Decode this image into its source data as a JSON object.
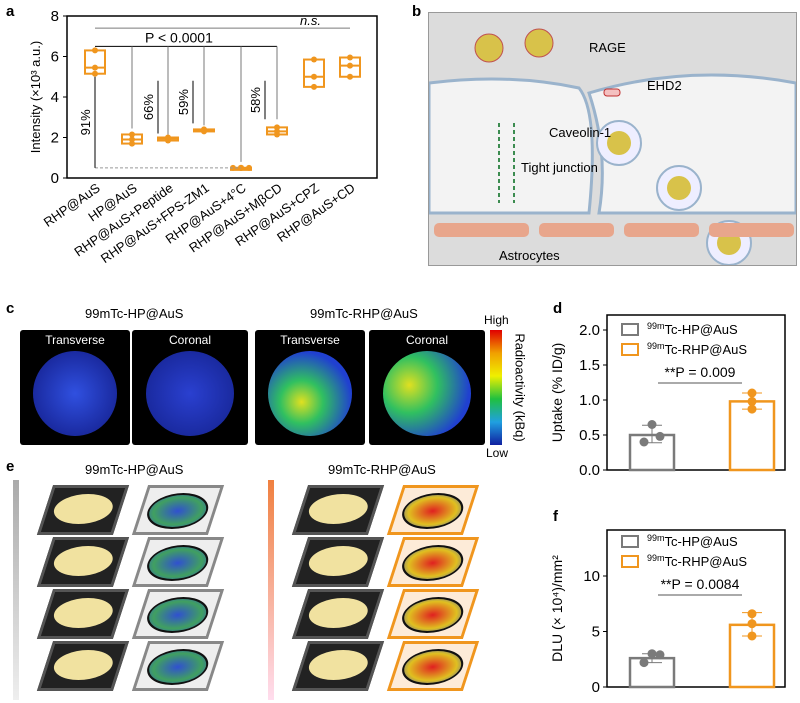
{
  "panel_labels": [
    "a",
    "b",
    "c",
    "d",
    "e",
    "f"
  ],
  "colors": {
    "orange": "#f0961e",
    "gray": "#7a7a7a"
  },
  "chart_data": [
    {
      "panel": "a",
      "type": "box",
      "ylabel": "Intensity (×10³ a.u.)",
      "ylim": [
        0,
        8
      ],
      "yticks": [
        0,
        2,
        4,
        6,
        8
      ],
      "categories": [
        "RHP@AuS",
        "HP@AuS",
        "RHP@AuS+Peptide",
        "RHP@AuS+FPS-ZM1",
        "RHP@AuS+4°C",
        "RHP@AuS+MβCD",
        "RHP@AuS+CPZ",
        "RHP@AuS+CD"
      ],
      "points": [
        [
          6.3,
          5.45,
          5.15
        ],
        [
          2.15,
          1.9,
          1.7
        ],
        [
          1.85,
          1.95,
          2.0
        ],
        [
          2.3,
          2.4,
          2.35
        ],
        [
          0.5,
          0.5,
          0.5
        ],
        [
          2.5,
          2.3,
          2.15
        ],
        [
          5.85,
          5.0,
          4.5
        ],
        [
          5.95,
          5.55,
          5.0
        ]
      ],
      "annotations": {
        "p_value": "P < 0.0001",
        "ns": "n.s.",
        "reductions": [
          "91%",
          "66%",
          "59%",
          "58%"
        ]
      }
    },
    {
      "panel": "d",
      "type": "bar",
      "ylabel": "Uptake (% ID/g)",
      "ylim": [
        0,
        2.0
      ],
      "yticks": [
        "0.0",
        "0.5",
        "1.0",
        "1.5",
        "2.0"
      ],
      "series": [
        {
          "name": "99mTc-HP@AuS",
          "value": 0.5,
          "error": [
            0.39,
            0.64
          ],
          "points": [
            0.65,
            0.48,
            0.4
          ]
        },
        {
          "name": "99mTc-RHP@AuS",
          "value": 0.98,
          "error": [
            0.87,
            1.1
          ],
          "points": [
            1.1,
            0.98,
            0.87
          ]
        }
      ],
      "annotation": "**P = 0.009",
      "legend": "top-left"
    },
    {
      "panel": "f",
      "type": "bar",
      "ylabel": "DLU (× 10⁴)/mm²",
      "ylim": [
        0,
        14
      ],
      "yticks": [
        "0",
        "5",
        "10"
      ],
      "series": [
        {
          "name": "99mTc-HP@AuS",
          "value": 2.6,
          "error": [
            2.2,
            3.0
          ],
          "points": [
            3.0,
            2.9,
            2.2
          ]
        },
        {
          "name": "99mTc-RHP@AuS",
          "value": 5.6,
          "error": [
            4.6,
            6.7
          ],
          "points": [
            6.6,
            5.7,
            4.6
          ]
        }
      ],
      "annotation": "**P = 0.0084",
      "legend": "top-left"
    }
  ],
  "panel_b": {
    "labels": [
      "RAGE",
      "EHD2",
      "Caveolin-1",
      "Tight junction",
      "Astrocytes"
    ]
  },
  "panel_c": {
    "left_title": "99mTc-HP@AuS",
    "right_title": "99mTc-RHP@AuS",
    "views": [
      "Transverse",
      "Coronal",
      "Transverse",
      "Coronal"
    ],
    "colorbar": {
      "label": "Radioactivity (kBq)",
      "high": "High",
      "low": "Low"
    }
  },
  "panel_e": {
    "left_title": "99mTc-HP@AuS",
    "right_title": "99mTc-RHP@AuS"
  }
}
